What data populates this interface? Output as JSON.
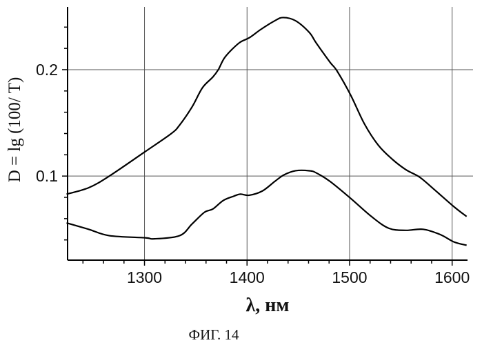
{
  "chart_data": {
    "type": "line",
    "title": "",
    "caption": "ФИГ. 14",
    "xlabel": "λ, нм",
    "ylabel": "D = lg (100/ T)",
    "xlim": [
      1225,
      1615
    ],
    "ylim": [
      0.021,
      0.259
    ],
    "x_ticks": [
      1300,
      1400,
      1500,
      1600
    ],
    "x_tick_labels": [
      "1300",
      "1400",
      "1500",
      "1600"
    ],
    "x_minor_step": 20,
    "y_ticks": [
      0.1,
      0.2
    ],
    "y_tick_labels": [
      "0.1",
      "0.2"
    ],
    "y_minor_step": 0.02,
    "grid": true,
    "legend": "none",
    "series": [
      {
        "name": "upper curve",
        "x": [
          1224,
          1245.5,
          1265.7,
          1300.7,
          1326.2,
          1334.3,
          1346.4,
          1356.5,
          1366.6,
          1372,
          1378.7,
          1392.1,
          1402.2,
          1413.7,
          1427.1,
          1435.2,
          1447.3,
          1460.7,
          1467.5,
          1480.9,
          1487.6,
          1501.1,
          1514.5,
          1528,
          1541.4,
          1554.9,
          1568.3,
          1581.8,
          1602,
          1614.1
        ],
        "y": [
          0.083,
          0.089,
          0.1,
          0.123,
          0.14,
          0.148,
          0.165,
          0.183,
          0.193,
          0.2,
          0.212,
          0.225,
          0.23,
          0.238,
          0.246,
          0.249,
          0.246,
          0.235,
          0.225,
          0.207,
          0.199,
          0.176,
          0.149,
          0.129,
          0.116,
          0.106,
          0.099,
          0.088,
          0.071,
          0.062
        ]
      },
      {
        "name": "lower curve",
        "x": [
          1224,
          1245.5,
          1265.7,
          1300.7,
          1309.4,
          1334.3,
          1346.4,
          1358.5,
          1366.6,
          1376.7,
          1386.8,
          1393.5,
          1402.2,
          1415,
          1427.1,
          1435.8,
          1447.3,
          1460.7,
          1467.5,
          1480.9,
          1501.1,
          1521.3,
          1538.1,
          1554.9,
          1571.7,
          1588.5,
          1602,
          1614.1
        ],
        "y": [
          0.056,
          0.05,
          0.044,
          0.042,
          0.041,
          0.044,
          0.055,
          0.066,
          0.069,
          0.077,
          0.081,
          0.083,
          0.082,
          0.086,
          0.095,
          0.101,
          0.105,
          0.105,
          0.103,
          0.095,
          0.079,
          0.062,
          0.051,
          0.049,
          0.05,
          0.045,
          0.038,
          0.035
        ]
      }
    ]
  }
}
